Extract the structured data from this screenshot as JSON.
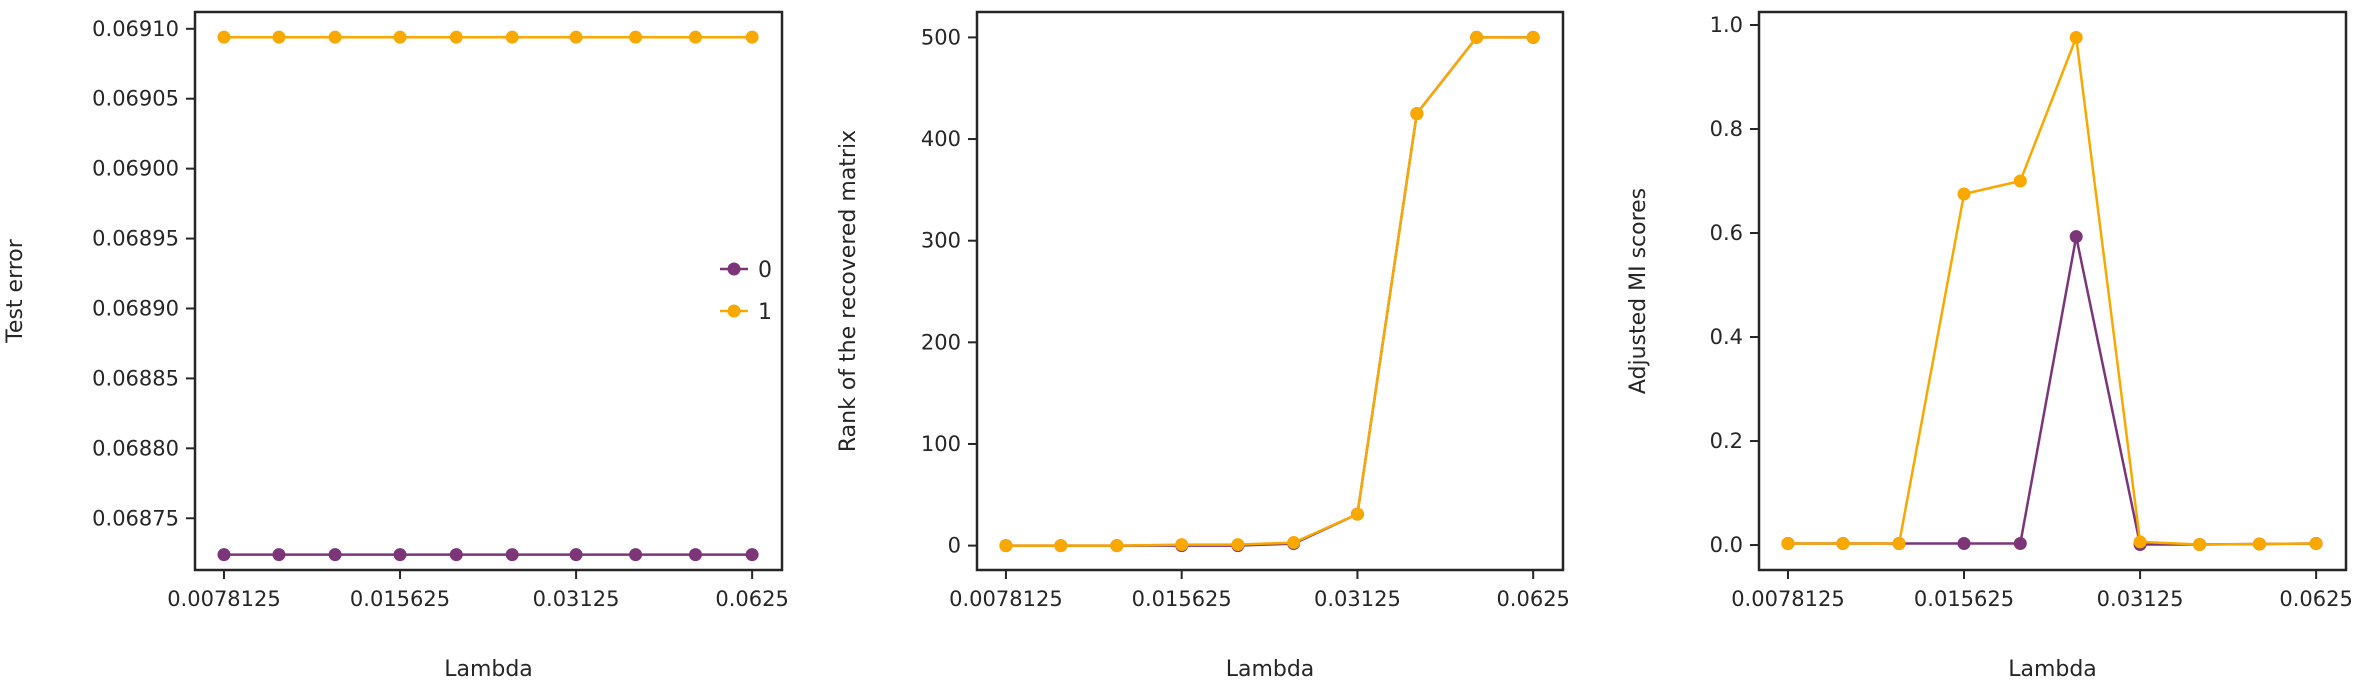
{
  "colors": {
    "series_0": "#7b3578",
    "series_1": "#f9a800",
    "axes": "#262626"
  },
  "chart_data": [
    {
      "type": "line",
      "xscale": "log2",
      "xticks": [
        0.0078125,
        0.015625,
        0.03125,
        0.0625
      ],
      "xtick_labels": [
        "0.0078125",
        "0.015625",
        "0.03125",
        "0.0625"
      ],
      "xlim": [
        0.00697,
        0.0703
      ],
      "ylim": [
        0.068713,
        0.069112
      ],
      "yticks": [
        0.06875,
        0.0688,
        0.06885,
        0.0689,
        0.06895,
        0.069,
        0.06905,
        0.0691
      ],
      "ytick_labels": [
        "0.06875",
        "0.06880",
        "0.06885",
        "0.06890",
        "0.06895",
        "0.06900",
        "0.06905",
        "0.06910"
      ],
      "xlabel": "Lambda",
      "ylabel": "Test error",
      "legend": {
        "location": "center-right",
        "entries": [
          "0",
          "1"
        ]
      },
      "x": [
        0.0078125,
        0.0097,
        0.0121,
        0.015625,
        0.0195,
        0.0243,
        0.03125,
        0.0395,
        0.05,
        0.0625
      ],
      "series": [
        {
          "name": "0",
          "color": "#7b3578",
          "values": [
            0.068724,
            0.068724,
            0.068724,
            0.068724,
            0.068724,
            0.068724,
            0.068724,
            0.068724,
            0.068724,
            0.068724
          ]
        },
        {
          "name": "1",
          "color": "#f9a800",
          "values": [
            0.069094,
            0.069094,
            0.069094,
            0.069094,
            0.069094,
            0.069094,
            0.069094,
            0.069094,
            0.069094,
            0.069094
          ]
        }
      ]
    },
    {
      "type": "line",
      "xscale": "log2",
      "xticks": [
        0.0078125,
        0.015625,
        0.03125,
        0.0625
      ],
      "xtick_labels": [
        "0.0078125",
        "0.015625",
        "0.03125",
        "0.0625"
      ],
      "xlim": [
        0.00697,
        0.0703
      ],
      "ylim": [
        -24,
        525
      ],
      "yticks": [
        0,
        100,
        200,
        300,
        400,
        500
      ],
      "ytick_labels": [
        "0",
        "100",
        "200",
        "300",
        "400",
        "500"
      ],
      "xlabel": "Lambda",
      "ylabel": "Rank of the recovered matrix",
      "x": [
        0.0078125,
        0.0097,
        0.0121,
        0.015625,
        0.0195,
        0.0243,
        0.03125,
        0.0395,
        0.05,
        0.0625
      ],
      "series": [
        {
          "name": "0",
          "color": "#7b3578",
          "values": [
            0,
            0,
            0,
            0,
            0,
            2,
            31,
            425,
            500,
            500
          ]
        },
        {
          "name": "1",
          "color": "#f9a800",
          "values": [
            0,
            0,
            0,
            1,
            1,
            3,
            31,
            425,
            500,
            500
          ]
        }
      ]
    },
    {
      "type": "line",
      "xscale": "log2",
      "xticks": [
        0.0078125,
        0.015625,
        0.03125,
        0.0625
      ],
      "xtick_labels": [
        "0.0078125",
        "0.015625",
        "0.03125",
        "0.0625"
      ],
      "xlim": [
        0.00697,
        0.0703
      ],
      "ylim": [
        -0.048,
        1.025
      ],
      "yticks": [
        0.0,
        0.2,
        0.4,
        0.6,
        0.8,
        1.0
      ],
      "ytick_labels": [
        "0.0",
        "0.2",
        "0.4",
        "0.6",
        "0.8",
        "1.0"
      ],
      "xlabel": "Lambda",
      "ylabel": "Adjusted MI scores",
      "x": [
        0.0078125,
        0.0097,
        0.0121,
        0.015625,
        0.0195,
        0.0243,
        0.03125,
        0.0395,
        0.05,
        0.0625
      ],
      "series": [
        {
          "name": "0",
          "color": "#7b3578",
          "values": [
            0.003,
            0.003,
            0.003,
            0.003,
            0.003,
            0.593,
            0.001,
            0.001,
            0.002,
            0.003
          ]
        },
        {
          "name": "1",
          "color": "#f9a800",
          "values": [
            0.003,
            0.003,
            0.003,
            0.675,
            0.7,
            0.976,
            0.006,
            0.001,
            0.002,
            0.003
          ]
        }
      ]
    }
  ]
}
